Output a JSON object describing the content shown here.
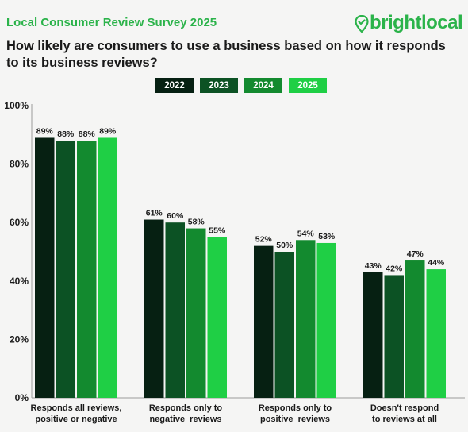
{
  "header": {
    "survey_title": "Local Consumer Review Survey 2025",
    "brand": "brightlocal",
    "brand_icon": "location-pin-icon",
    "question": "How likely are consumers to use a business based on how it responds to its business reviews?"
  },
  "colors": {
    "accent": "#2bb34a",
    "series": [
      "#062012",
      "#0c5224",
      "#138a2f",
      "#1fcf45"
    ]
  },
  "chart_data": {
    "type": "bar",
    "ylim": [
      0,
      100
    ],
    "yticks": [
      "0%",
      "20%",
      "40%",
      "60%",
      "80%",
      "100%"
    ],
    "grid": false,
    "legend": "top",
    "categories": [
      [
        "Responds all reviews,",
        "positive or negative"
      ],
      [
        "Responds only to",
        "negative  reviews"
      ],
      [
        "Responds only to",
        "positive  reviews"
      ],
      [
        "Doesn't respond",
        "to reviews at all"
      ]
    ],
    "series": [
      {
        "name": "2022",
        "values": [
          89,
          61,
          52,
          43
        ]
      },
      {
        "name": "2023",
        "values": [
          88,
          60,
          50,
          42
        ]
      },
      {
        "name": "2024",
        "values": [
          88,
          58,
          54,
          47
        ]
      },
      {
        "name": "2025",
        "values": [
          89,
          55,
          53,
          44
        ]
      }
    ]
  }
}
